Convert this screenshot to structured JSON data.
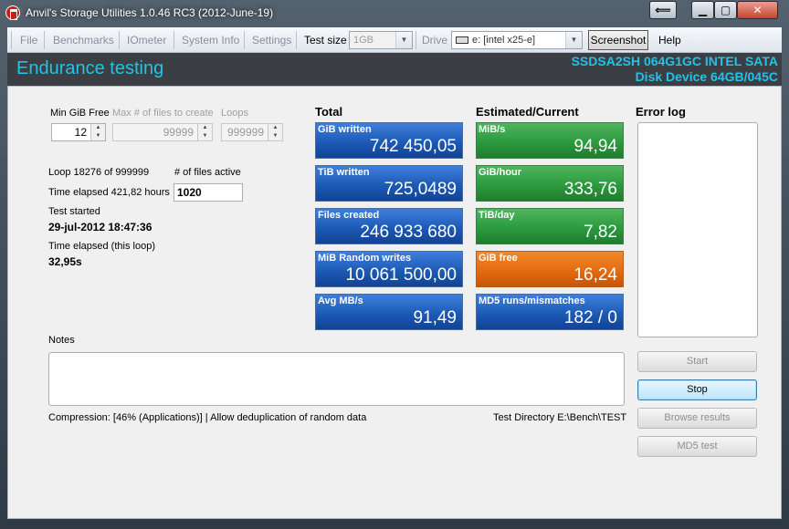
{
  "window": {
    "title": "Anvil's Storage Utilities 1.0.46 RC3 (2012-June-19)",
    "back_glyph": "⟸",
    "min_glyph": "▁",
    "max_glyph": "▢",
    "close_glyph": "✕"
  },
  "menu": {
    "file": "File",
    "benchmarks": "Benchmarks",
    "iometer": "IOmeter",
    "system_info": "System Info",
    "settings": "Settings",
    "test_size_label": "Test size",
    "test_size_value": "1GB",
    "drive_label": "Drive",
    "drive_value": "e: [intel x25-e]",
    "screenshot": "Screenshot",
    "help": "Help"
  },
  "header": {
    "title": "Endurance testing",
    "device_line1": "SSDSA2SH 064G1GC INTEL SATA",
    "device_line2": "Disk Device 64GB/045C"
  },
  "params": {
    "min_gib_free_label": "Min GiB Free",
    "min_gib_free_value": "12",
    "max_files_label": "Max # of files to create",
    "max_files_value": "99999",
    "loops_label": "Loops",
    "loops_value": "999999"
  },
  "status": {
    "loop_text": "Loop 18276 of 999999",
    "files_active_label": "# of files active",
    "files_active_value": "1020",
    "time_elapsed_text": "Time elapsed 421,82 hours",
    "test_started_label": "Test started",
    "test_started_value": "29-jul-2012 18:47:36",
    "time_elapsed_loop_label": "Time elapsed (this loop)",
    "time_elapsed_loop_value": "32,95s"
  },
  "total": {
    "heading": "Total",
    "tiles": [
      {
        "label": "GiB written",
        "value": "742 450,05"
      },
      {
        "label": "TiB written",
        "value": "725,0489"
      },
      {
        "label": "Files created",
        "value": "246 933 680"
      },
      {
        "label": "MiB Random writes",
        "value": "10 061 500,00"
      },
      {
        "label": "Avg MB/s",
        "value": "91,49"
      }
    ]
  },
  "estimated": {
    "heading": "Estimated/Current",
    "tiles": [
      {
        "label": "MiB/s",
        "value": "94,94"
      },
      {
        "label": "GiB/hour",
        "value": "333,76"
      },
      {
        "label": "TiB/day",
        "value": "7,82"
      },
      {
        "label": "GiB free",
        "value": "16,24"
      },
      {
        "label": "MD5 runs/mismatches",
        "value": "182 / 0"
      }
    ]
  },
  "error_log": {
    "heading": "Error log"
  },
  "notes": {
    "label": "Notes"
  },
  "footer": {
    "compression": "Compression: [46% (Applications)] | Allow deduplication of random data",
    "test_directory": "Test Directory E:\\Bench\\TEST"
  },
  "buttons": {
    "start": "Start",
    "stop": "Stop",
    "browse": "Browse results",
    "md5": "MD5 test"
  },
  "colors": {
    "header_text": "#24c1e8",
    "tile_blue": "#1c5ab5",
    "tile_green": "#2c9a3e",
    "tile_orange": "#e46b11"
  }
}
